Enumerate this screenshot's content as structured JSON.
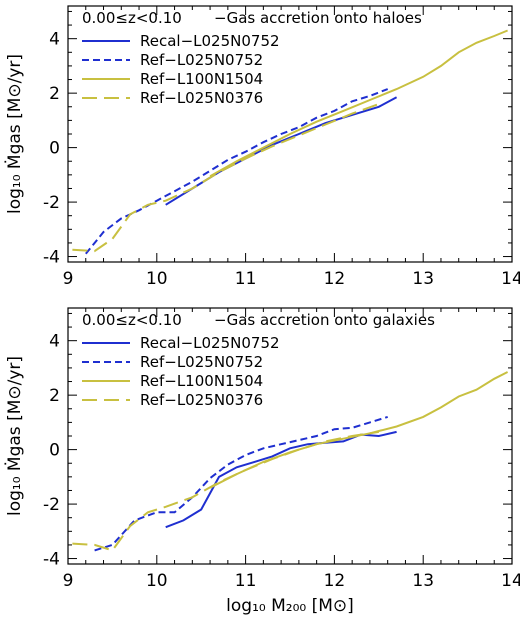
{
  "colors": {
    "recal": "#1f2fd0",
    "ref_752": "#1f2fd0",
    "ref_1504": "#c8c040",
    "ref_376": "#c8c040"
  },
  "chart_data": [
    {
      "type": "line",
      "annotation_range": "0.00≤z<0.10",
      "annotation_label": "−Gas accretion onto haloes",
      "ylabel": "log₁₀ Ṁgas [M⊙/yr]",
      "xlabel": "",
      "xlim": [
        9,
        14
      ],
      "ylim": [
        -4.2,
        5.2
      ],
      "xticks": [
        9,
        10,
        11,
        12,
        13,
        14
      ],
      "yticks": [
        -4,
        -2,
        0,
        2,
        4
      ],
      "legend_position": "top-left",
      "series": [
        {
          "name": "Recal−L025N0752",
          "style": "solid",
          "color_key": "recal",
          "x": [
            10.1,
            10.4,
            10.7,
            11.0,
            11.3,
            11.6,
            11.9,
            12.2,
            12.5,
            12.7
          ],
          "y": [
            -2.1,
            -1.5,
            -0.9,
            -0.4,
            0.1,
            0.5,
            0.9,
            1.2,
            1.5,
            1.85
          ]
        },
        {
          "name": "Ref−L025N0752",
          "style": "dash",
          "color_key": "ref_752",
          "x": [
            9.2,
            9.4,
            9.6,
            9.8,
            10.0,
            10.2,
            10.4,
            10.6,
            10.8,
            11.0,
            11.2,
            11.4,
            11.6,
            11.8,
            12.0,
            12.2,
            12.4,
            12.6
          ],
          "y": [
            -3.9,
            -3.1,
            -2.6,
            -2.3,
            -1.95,
            -1.6,
            -1.25,
            -0.85,
            -0.45,
            -0.15,
            0.2,
            0.5,
            0.75,
            1.1,
            1.35,
            1.7,
            1.9,
            2.15
          ]
        },
        {
          "name": "Ref−L100N1504",
          "style": "solid",
          "color_key": "ref_1504",
          "x": [
            10.6,
            10.9,
            11.2,
            11.5,
            11.8,
            12.1,
            12.4,
            12.7,
            13.0,
            13.2,
            13.4,
            13.6,
            13.8,
            13.95
          ],
          "y": [
            -1.05,
            -0.5,
            0.0,
            0.5,
            0.95,
            1.35,
            1.75,
            2.15,
            2.6,
            3.0,
            3.5,
            3.85,
            4.1,
            4.3
          ]
        },
        {
          "name": "Ref−L025N0376",
          "style": "longdash",
          "color_key": "ref_376",
          "x": [
            9.05,
            9.3,
            9.5,
            9.7,
            9.9,
            10.1,
            10.4,
            10.7,
            11.0,
            11.3,
            11.6,
            11.9,
            12.2,
            12.5
          ],
          "y": [
            -3.75,
            -3.8,
            -3.35,
            -2.45,
            -2.1,
            -1.95,
            -1.5,
            -0.9,
            -0.4,
            0.05,
            0.45,
            0.85,
            1.25,
            1.6
          ]
        }
      ]
    },
    {
      "type": "line",
      "annotation_range": "0.00≤z<0.10",
      "annotation_label": "−Gas accretion onto galaxies",
      "ylabel": "log₁₀ Ṁgas [M⊙/yr]",
      "xlabel": "log₁₀ M₂₀₀ [M⊙]",
      "xlim": [
        9,
        14
      ],
      "ylim": [
        -4.2,
        5.2
      ],
      "xticks": [
        9,
        10,
        11,
        12,
        13,
        14
      ],
      "yticks": [
        -4,
        -2,
        0,
        2,
        4
      ],
      "legend_position": "top-left",
      "series": [
        {
          "name": "Recal−L025N0752",
          "style": "solid",
          "color_key": "recal",
          "x": [
            10.1,
            10.3,
            10.5,
            10.7,
            10.9,
            11.1,
            11.3,
            11.5,
            11.7,
            11.9,
            12.1,
            12.3,
            12.5,
            12.7
          ],
          "y": [
            -2.85,
            -2.6,
            -2.2,
            -1.0,
            -0.65,
            -0.45,
            -0.25,
            0.05,
            0.2,
            0.25,
            0.3,
            0.55,
            0.5,
            0.65
          ]
        },
        {
          "name": "Ref−L025N0752",
          "style": "dash",
          "color_key": "ref_752",
          "x": [
            9.3,
            9.5,
            9.75,
            10.0,
            10.2,
            10.4,
            10.6,
            10.8,
            11.0,
            11.2,
            11.4,
            11.6,
            11.8,
            12.0,
            12.2,
            12.4,
            12.6
          ],
          "y": [
            -3.7,
            -3.5,
            -2.6,
            -2.3,
            -2.3,
            -1.75,
            -1.05,
            -0.55,
            -0.2,
            0.05,
            0.2,
            0.35,
            0.5,
            0.75,
            0.8,
            1.0,
            1.2
          ]
        },
        {
          "name": "Ref−L100N1504",
          "style": "solid",
          "color_key": "ref_1504",
          "x": [
            10.6,
            10.9,
            11.2,
            11.5,
            11.8,
            12.1,
            12.4,
            12.7,
            13.0,
            13.2,
            13.4,
            13.6,
            13.8,
            13.95
          ],
          "y": [
            -1.4,
            -0.9,
            -0.45,
            -0.1,
            0.2,
            0.4,
            0.6,
            0.85,
            1.2,
            1.55,
            1.95,
            2.2,
            2.6,
            2.85
          ]
        },
        {
          "name": "Ref−L025N0376",
          "style": "longdash",
          "color_key": "ref_376",
          "x": [
            9.05,
            9.3,
            9.5,
            9.7,
            9.9,
            10.1,
            10.4,
            10.7,
            11.0,
            11.3,
            11.6,
            11.9,
            12.2,
            12.5
          ],
          "y": [
            -3.45,
            -3.5,
            -3.7,
            -2.8,
            -2.3,
            -2.1,
            -1.75,
            -1.2,
            -0.75,
            -0.35,
            0.0,
            0.3,
            0.5,
            0.65
          ]
        }
      ]
    }
  ]
}
